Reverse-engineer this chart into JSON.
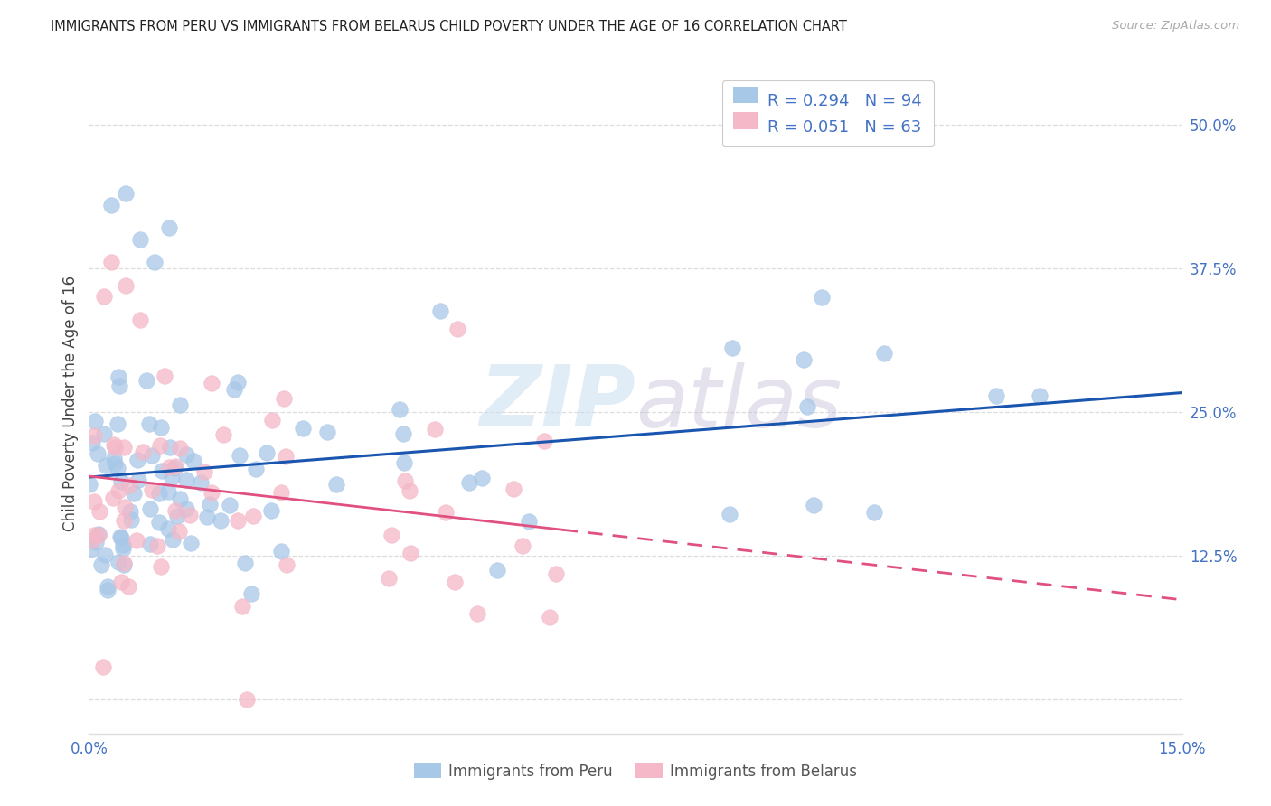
{
  "title": "IMMIGRANTS FROM PERU VS IMMIGRANTS FROM BELARUS CHILD POVERTY UNDER THE AGE OF 16 CORRELATION CHART",
  "source": "Source: ZipAtlas.com",
  "ylabel": "Child Poverty Under the Age of 16",
  "ytick_values": [
    0.0,
    0.125,
    0.25,
    0.375,
    0.5
  ],
  "ytick_labels": [
    "",
    "12.5%",
    "25.0%",
    "37.5%",
    "50.0%"
  ],
  "xmin": 0.0,
  "xmax": 0.15,
  "ymin": -0.03,
  "ymax": 0.545,
  "legend_peru_label": "Immigrants from Peru",
  "legend_belarus_label": "Immigrants from Belarus",
  "R_peru": "0.294",
  "N_peru": "94",
  "R_belarus": "0.051",
  "N_belarus": "63",
  "color_peru": "#a8c8e8",
  "color_belarus": "#f4b8c8",
  "line_color_peru": "#1a56b0",
  "line_color_belarus": "#e05080",
  "watermark_zip": "ZIP",
  "watermark_atlas": "atlas",
  "title_color": "#222222",
  "axis_color": "#4472c4",
  "source_color": "#aaaaaa",
  "grid_color": "#dddddd"
}
